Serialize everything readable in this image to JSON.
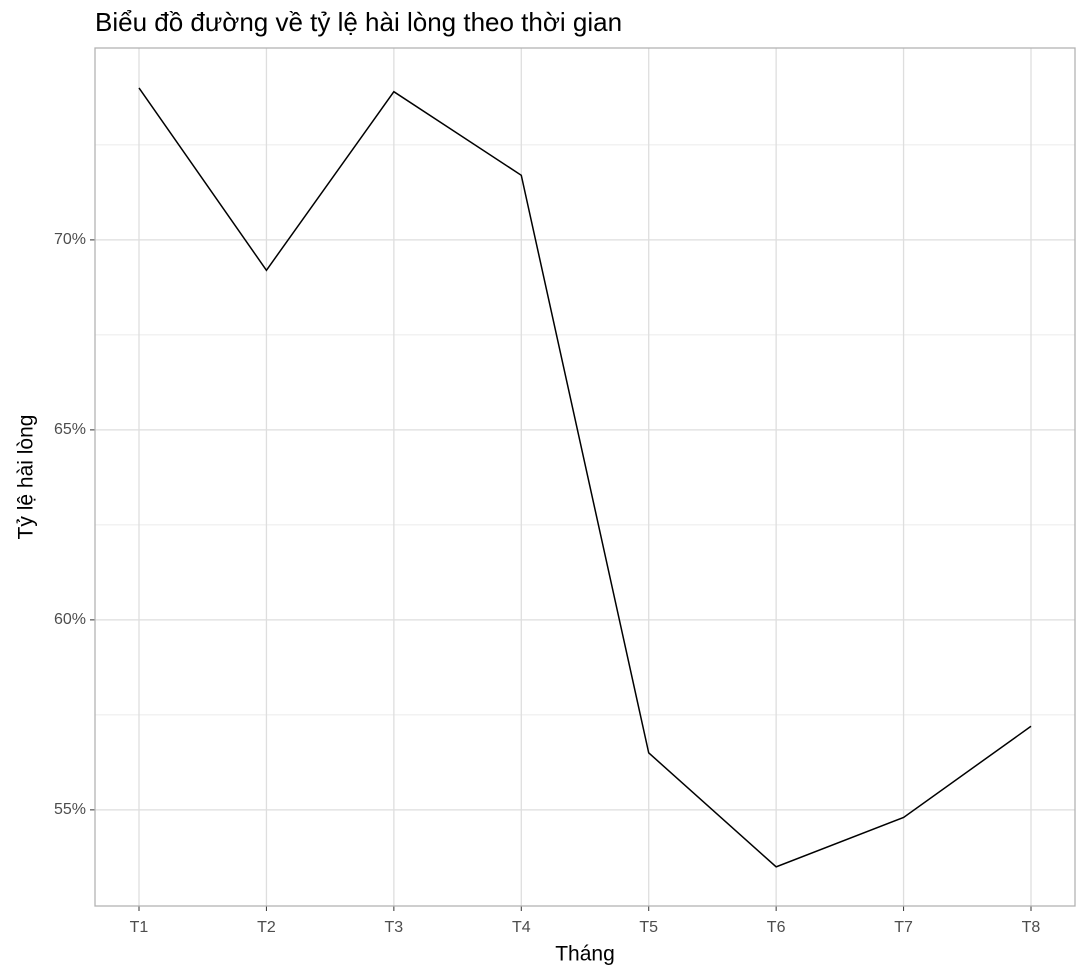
{
  "chart_data": {
    "type": "line",
    "title": "Biểu đồ đường về tỷ lệ hài lòng theo thời gian",
    "x_label": "Tháng",
    "y_label": "Tỷ lệ hài lòng",
    "categories": [
      "T1",
      "T2",
      "T3",
      "T4",
      "T5",
      "T6",
      "T7",
      "T8"
    ],
    "values": [
      74.0,
      69.2,
      73.9,
      71.7,
      56.5,
      53.5,
      54.8,
      57.2
    ],
    "color": "#000000",
    "ylim": [
      52.47,
      75.05
    ],
    "yticks": [
      {
        "value": 55,
        "label": "55%"
      },
      {
        "value": 60,
        "label": "60%"
      },
      {
        "value": 65,
        "label": "65%"
      },
      {
        "value": 70,
        "label": "70%"
      }
    ],
    "y_minor_ticks": [
      57.5,
      62.5,
      67.5,
      72.5
    ],
    "grid": true
  }
}
